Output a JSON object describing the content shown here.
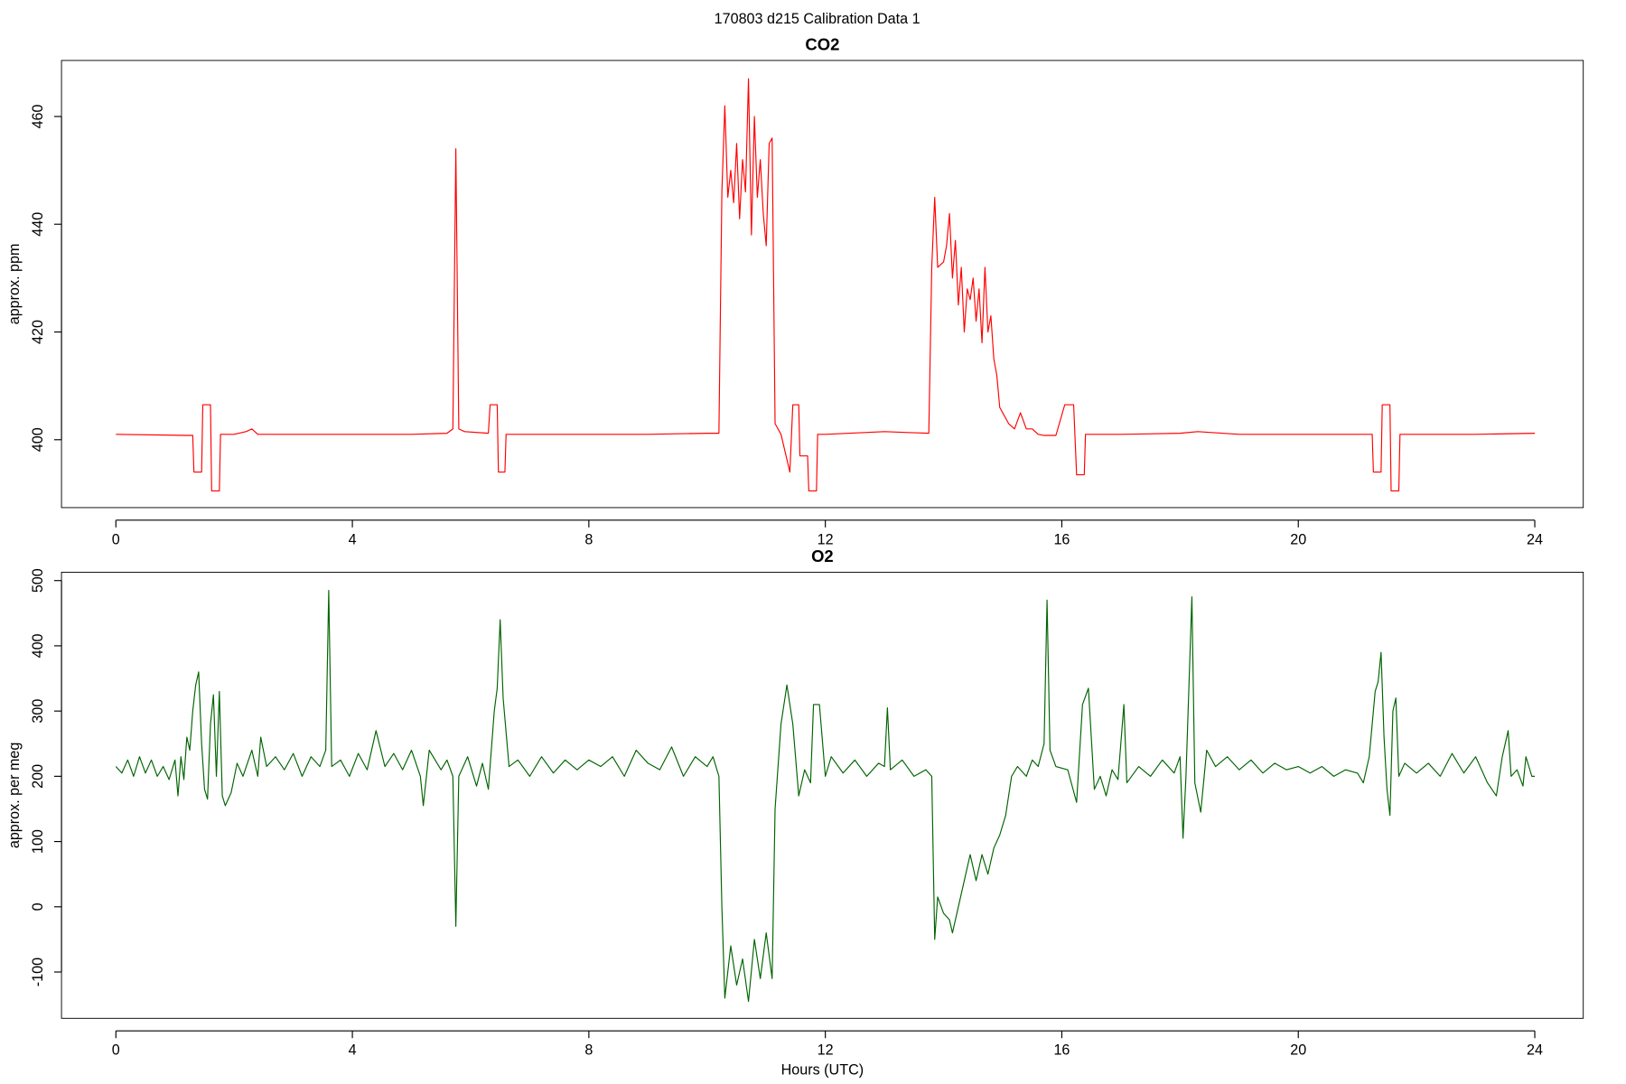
{
  "title": "170803   d215   Calibration Data 1",
  "chart_data": [
    {
      "type": "line",
      "title": "CO2",
      "ylabel": "approx. ppm",
      "xlim": [
        -0.92,
        24.82
      ],
      "ylim": [
        387.4,
        470.4
      ],
      "xticks": [
        0,
        4,
        8,
        12,
        16,
        20,
        24
      ],
      "yticks": [
        400,
        420,
        440,
        460
      ],
      "grid": false,
      "x": [
        0,
        1.2,
        1.3,
        1.32,
        1.45,
        1.47,
        1.6,
        1.62,
        1.75,
        1.77,
        2.0,
        2.2,
        2.3,
        2.4,
        3,
        4,
        5,
        5.6,
        5.7,
        5.75,
        5.8,
        5.9,
        6.3,
        6.33,
        6.45,
        6.47,
        6.58,
        6.6,
        7,
        8,
        9,
        10,
        10.2,
        10.25,
        10.3,
        10.35,
        10.4,
        10.45,
        10.5,
        10.55,
        10.6,
        10.65,
        10.7,
        10.75,
        10.8,
        10.85,
        10.9,
        10.95,
        11.0,
        11.05,
        11.1,
        11.15,
        11.25,
        11.4,
        11.45,
        11.55,
        11.57,
        11.7,
        11.72,
        11.85,
        11.87,
        12,
        13,
        13.5,
        13.75,
        13.8,
        13.85,
        13.9,
        14,
        14.05,
        14.1,
        14.15,
        14.2,
        14.25,
        14.3,
        14.35,
        14.4,
        14.45,
        14.5,
        14.55,
        14.6,
        14.65,
        14.7,
        14.75,
        14.8,
        14.85,
        14.9,
        14.95,
        15.0,
        15.1,
        15.2,
        15.3,
        15.4,
        15.5,
        15.6,
        15.7,
        15.9,
        16.05,
        16.2,
        16.25,
        16.38,
        16.4,
        17,
        18,
        18.3,
        19,
        20,
        21,
        21.25,
        21.27,
        21.4,
        21.42,
        21.55,
        21.57,
        21.7,
        21.72,
        22,
        23,
        24
      ],
      "series": [
        {
          "color": "#ff0000",
          "values": [
            401,
            400.8,
            400.8,
            394,
            394,
            406.5,
            406.5,
            390.5,
            390.5,
            401,
            401,
            401.5,
            402,
            401,
            401,
            401,
            401,
            401.2,
            402,
            454,
            402,
            401.5,
            401.2,
            406.5,
            406.5,
            394,
            394,
            401,
            401,
            401,
            401,
            401.2,
            401.2,
            446,
            462,
            445,
            450,
            444,
            455,
            441,
            452,
            446,
            467,
            438,
            460,
            445,
            452,
            442,
            436,
            455,
            456,
            403,
            401,
            394,
            406.5,
            406.5,
            397,
            397,
            390.5,
            390.5,
            401,
            401,
            401.5,
            401.3,
            401.2,
            432,
            445,
            432,
            433,
            436,
            442,
            430,
            437,
            425,
            432,
            420,
            428,
            426,
            430,
            422,
            428,
            418,
            432,
            420,
            423,
            415,
            412,
            406,
            405,
            403,
            402,
            405,
            402,
            402,
            401,
            400.8,
            400.8,
            406.5,
            406.5,
            393.5,
            393.5,
            401,
            401,
            401.2,
            401.5,
            401,
            401,
            401,
            401,
            394,
            394,
            406.5,
            406.5,
            390.5,
            390.5,
            401,
            401,
            401,
            401.2
          ]
        }
      ]
    },
    {
      "type": "line",
      "title": "O2",
      "ylabel": "approx. per meg",
      "xlabel": "Hours (UTC)",
      "xlim": [
        -0.92,
        24.82
      ],
      "ylim": [
        -171,
        512.8
      ],
      "xticks": [
        0,
        4,
        8,
        12,
        16,
        20,
        24
      ],
      "yticks": [
        -100,
        0,
        100,
        200,
        300,
        400,
        500
      ],
      "grid": false,
      "x": [
        0,
        0.1,
        0.2,
        0.3,
        0.4,
        0.5,
        0.6,
        0.7,
        0.8,
        0.9,
        1.0,
        1.05,
        1.1,
        1.15,
        1.2,
        1.25,
        1.3,
        1.35,
        1.4,
        1.45,
        1.5,
        1.55,
        1.6,
        1.65,
        1.7,
        1.75,
        1.8,
        1.85,
        1.95,
        2.05,
        2.15,
        2.3,
        2.4,
        2.45,
        2.55,
        2.7,
        2.85,
        3.0,
        3.15,
        3.3,
        3.45,
        3.55,
        3.6,
        3.65,
        3.8,
        3.95,
        4.1,
        4.25,
        4.4,
        4.55,
        4.7,
        4.85,
        5.0,
        5.15,
        5.2,
        5.3,
        5.5,
        5.6,
        5.7,
        5.75,
        5.8,
        5.95,
        6.1,
        6.2,
        6.3,
        6.4,
        6.45,
        6.5,
        6.55,
        6.65,
        6.8,
        7.0,
        7.2,
        7.4,
        7.6,
        7.8,
        8.0,
        8.2,
        8.4,
        8.6,
        8.8,
        9.0,
        9.2,
        9.4,
        9.6,
        9.8,
        10.0,
        10.1,
        10.2,
        10.25,
        10.3,
        10.4,
        10.5,
        10.6,
        10.7,
        10.8,
        10.9,
        11.0,
        11.1,
        11.15,
        11.25,
        11.35,
        11.45,
        11.55,
        11.65,
        11.75,
        11.8,
        11.9,
        12.0,
        12.1,
        12.3,
        12.5,
        12.7,
        12.9,
        13.0,
        13.05,
        13.1,
        13.3,
        13.5,
        13.7,
        13.8,
        13.85,
        13.9,
        14.0,
        14.1,
        14.15,
        14.25,
        14.35,
        14.45,
        14.55,
        14.65,
        14.75,
        14.85,
        14.95,
        15.05,
        15.15,
        15.25,
        15.4,
        15.5,
        15.6,
        15.7,
        15.75,
        15.8,
        15.9,
        16.1,
        16.25,
        16.35,
        16.45,
        16.55,
        16.65,
        16.75,
        16.85,
        16.95,
        17.05,
        17.1,
        17.3,
        17.5,
        17.7,
        17.9,
        18.0,
        18.05,
        18.1,
        18.2,
        18.25,
        18.35,
        18.45,
        18.6,
        18.8,
        19.0,
        19.2,
        19.4,
        19.6,
        19.8,
        20.0,
        20.2,
        20.4,
        20.6,
        20.8,
        21.0,
        21.1,
        21.2,
        21.3,
        21.35,
        21.4,
        21.45,
        21.5,
        21.55,
        21.6,
        21.65,
        21.7,
        21.8,
        22.0,
        22.2,
        22.4,
        22.6,
        22.8,
        23.0,
        23.2,
        23.35,
        23.45,
        23.55,
        23.6,
        23.7,
        23.8,
        23.85,
        23.95,
        24
      ],
      "series": [
        {
          "color": "#006400",
          "values": [
            215,
            205,
            225,
            200,
            230,
            205,
            225,
            200,
            215,
            195,
            225,
            170,
            230,
            195,
            260,
            240,
            300,
            340,
            360,
            250,
            180,
            165,
            280,
            325,
            200,
            330,
            170,
            155,
            175,
            220,
            200,
            240,
            200,
            260,
            215,
            230,
            210,
            235,
            200,
            230,
            215,
            240,
            485,
            215,
            225,
            200,
            235,
            210,
            270,
            215,
            235,
            210,
            240,
            200,
            155,
            240,
            210,
            225,
            200,
            -30,
            200,
            230,
            185,
            220,
            180,
            300,
            335,
            440,
            320,
            215,
            225,
            200,
            230,
            205,
            225,
            210,
            225,
            215,
            230,
            200,
            240,
            220,
            210,
            245,
            200,
            230,
            215,
            230,
            200,
            0,
            -140,
            -60,
            -120,
            -80,
            -145,
            -50,
            -110,
            -40,
            -110,
            150,
            280,
            340,
            280,
            170,
            210,
            190,
            310,
            310,
            200,
            230,
            205,
            225,
            200,
            220,
            215,
            305,
            210,
            225,
            200,
            210,
            200,
            -50,
            15,
            -10,
            -20,
            -40,
            0,
            40,
            80,
            40,
            80,
            50,
            90,
            110,
            140,
            200,
            215,
            200,
            225,
            215,
            250,
            470,
            240,
            215,
            210,
            160,
            310,
            335,
            180,
            200,
            170,
            210,
            195,
            310,
            190,
            215,
            200,
            225,
            205,
            230,
            105,
            200,
            475,
            190,
            145,
            240,
            215,
            230,
            210,
            225,
            205,
            220,
            210,
            215,
            205,
            215,
            200,
            210,
            205,
            190,
            230,
            330,
            345,
            390,
            260,
            180,
            140,
            300,
            320,
            200,
            220,
            205,
            220,
            200,
            235,
            205,
            230,
            190,
            170,
            230,
            270,
            200,
            210,
            185,
            230,
            200,
            200
          ]
        }
      ]
    }
  ]
}
